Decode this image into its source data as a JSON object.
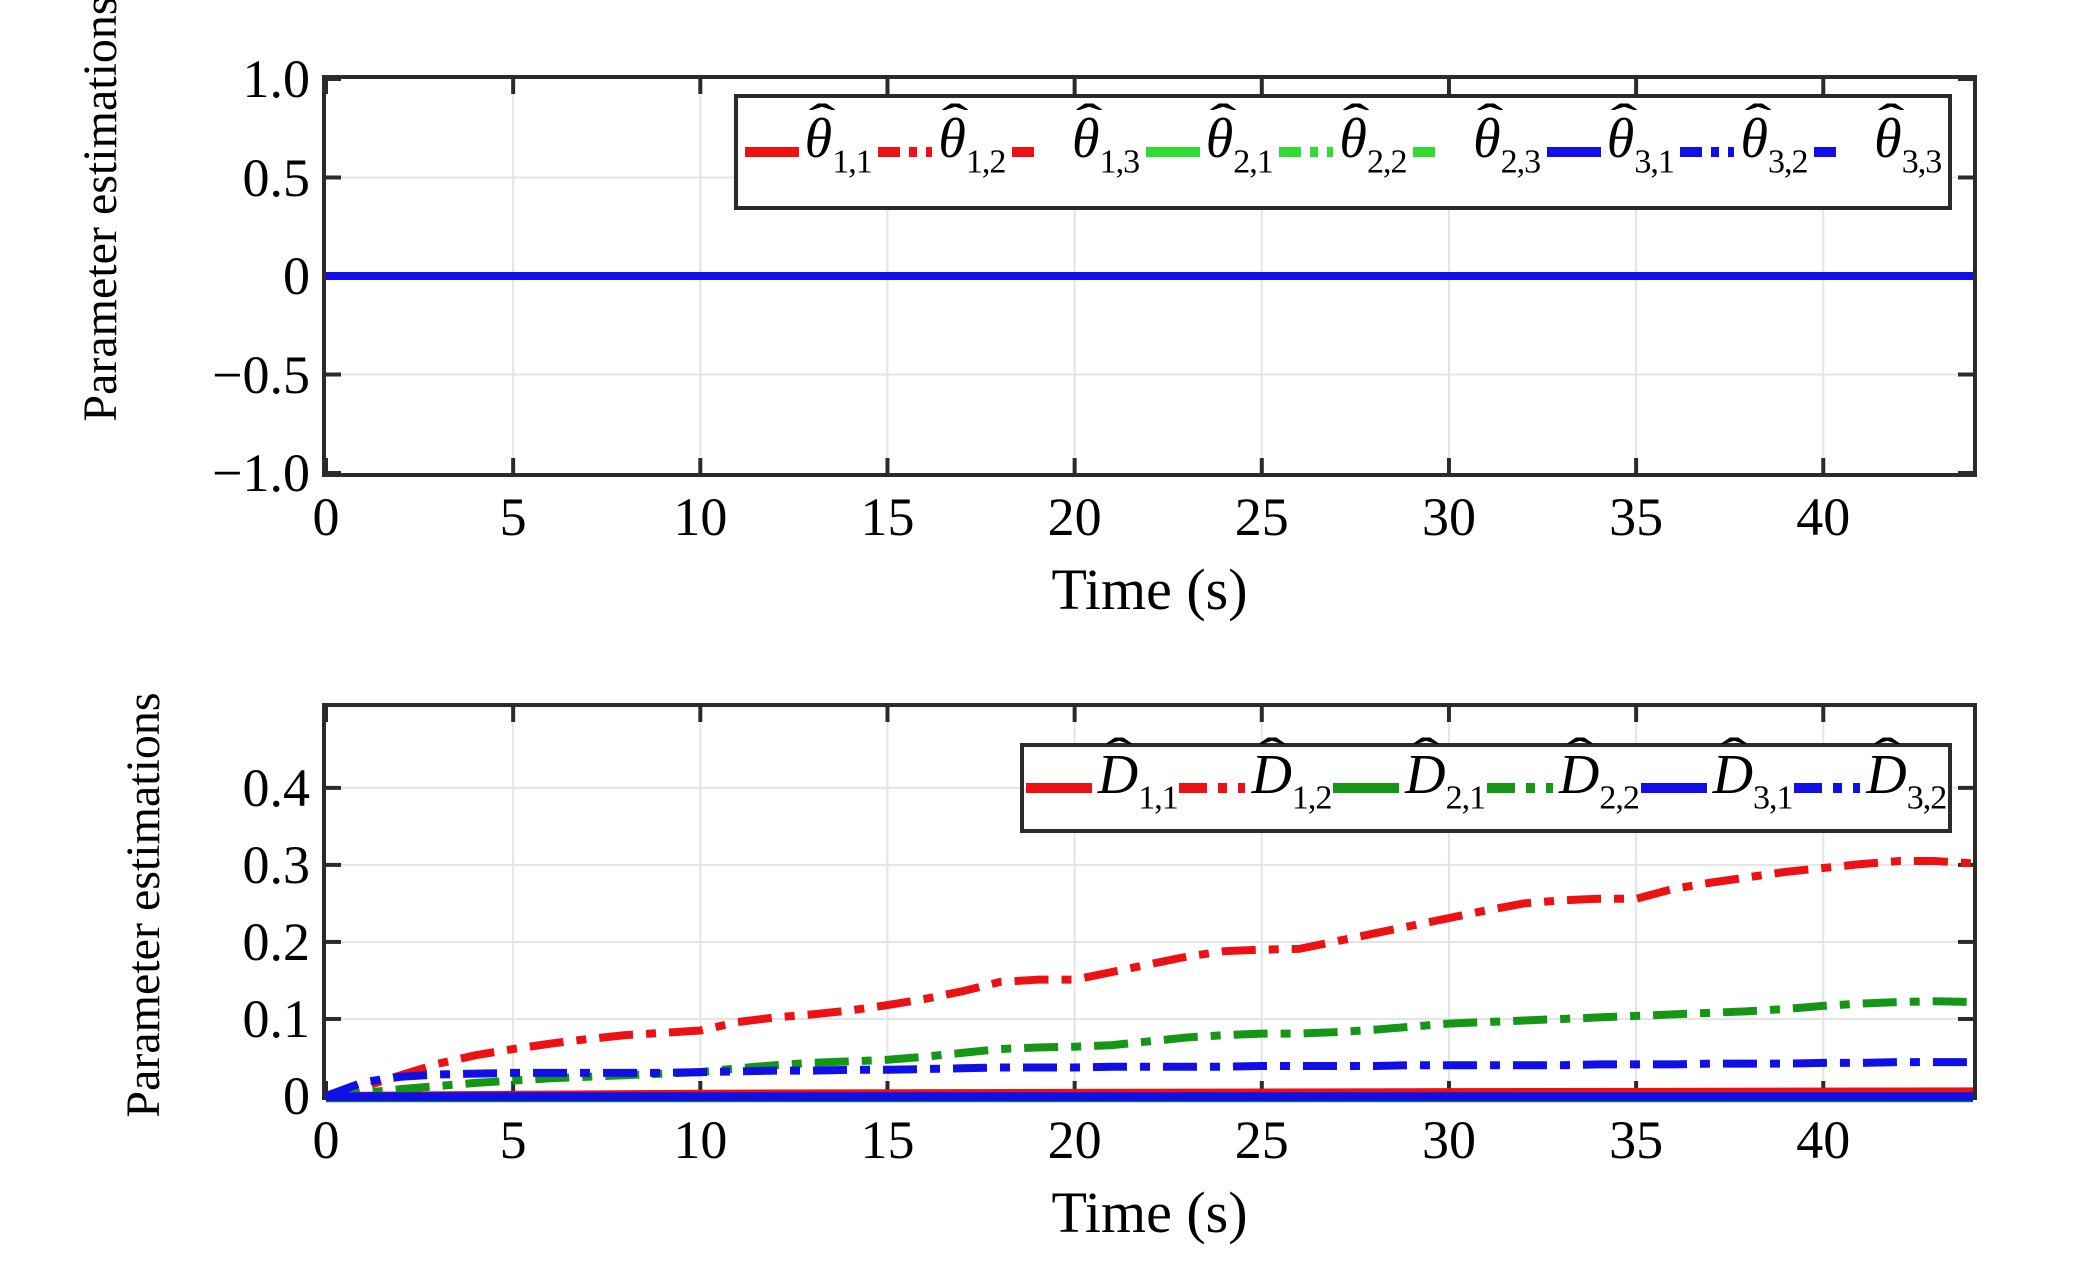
{
  "figure": {
    "background": "#ffffff",
    "axes_border_color": "#2b2b2b",
    "grid_color": "#e4e4e4",
    "tick_color": "#2b2b2b",
    "palette": {
      "red": "#ee1114",
      "bright_green": "#32dc32",
      "dark_green": "#169616",
      "blue": "#1010e6"
    }
  },
  "chart_data": [
    {
      "type": "line",
      "title": "",
      "xlabel": "Time (s)",
      "ylabel": "Parameter estimations",
      "xlim": [
        0,
        44
      ],
      "ylim": [
        -1.0,
        1.0
      ],
      "grid": true,
      "legend_position": "upper right",
      "xticks": {
        "values": [
          0,
          5,
          10,
          15,
          20,
          25,
          30,
          35,
          40
        ],
        "labels": [
          "0",
          "5",
          "10",
          "15",
          "20",
          "25",
          "30",
          "35",
          "40"
        ]
      },
      "yticks": {
        "values": [
          1.0,
          0.5,
          0,
          -0.5,
          -1.0
        ],
        "labels": [
          "1.0",
          "0.5",
          "0",
          "−0.5",
          "−1.0"
        ]
      },
      "series": [
        {
          "name": "theta-hat-1-1",
          "symbol": "θ",
          "sub": "1,1",
          "color": "#ee1114",
          "style": "solid",
          "x": [
            0,
            44
          ],
          "y": [
            0,
            0
          ]
        },
        {
          "name": "theta-hat-1-2",
          "symbol": "θ",
          "sub": "1,2",
          "color": "#ee1114",
          "style": "dashdot",
          "x": [
            0,
            44
          ],
          "y": [
            0,
            0
          ]
        },
        {
          "name": "theta-hat-1-3",
          "symbol": "θ",
          "sub": "1,3",
          "color": "#ee1114",
          "style": "dash",
          "x": [
            0,
            44
          ],
          "y": [
            0,
            0
          ]
        },
        {
          "name": "theta-hat-2-1",
          "symbol": "θ",
          "sub": "2,1",
          "color": "#32dc32",
          "style": "solid",
          "x": [
            0,
            44
          ],
          "y": [
            0,
            0
          ]
        },
        {
          "name": "theta-hat-2-2",
          "symbol": "θ",
          "sub": "2,2",
          "color": "#32dc32",
          "style": "dashdot",
          "x": [
            0,
            44
          ],
          "y": [
            0,
            0
          ]
        },
        {
          "name": "theta-hat-2-3",
          "symbol": "θ",
          "sub": "2,3",
          "color": "#32dc32",
          "style": "dash",
          "x": [
            0,
            44
          ],
          "y": [
            0,
            0
          ]
        },
        {
          "name": "theta-hat-3-1",
          "symbol": "θ",
          "sub": "3,1",
          "color": "#1010e6",
          "style": "solid",
          "x": [
            0,
            44
          ],
          "y": [
            0,
            0
          ]
        },
        {
          "name": "theta-hat-3-2",
          "symbol": "θ",
          "sub": "3,2",
          "color": "#1010e6",
          "style": "dashdot",
          "x": [
            0,
            44
          ],
          "y": [
            0,
            0
          ]
        },
        {
          "name": "theta-hat-3-3",
          "symbol": "θ",
          "sub": "3,3",
          "color": "#1010e6",
          "style": "dash",
          "x": [
            0,
            44
          ],
          "y": [
            0,
            0
          ]
        }
      ]
    },
    {
      "type": "line",
      "title": "",
      "xlabel": "Time (s)",
      "ylabel": "Parameter estimations",
      "xlim": [
        0,
        44
      ],
      "ylim": [
        0,
        0.505
      ],
      "grid": true,
      "legend_position": "upper right",
      "xticks": {
        "values": [
          0,
          5,
          10,
          15,
          20,
          25,
          30,
          35,
          40
        ],
        "labels": [
          "0",
          "5",
          "10",
          "15",
          "20",
          "25",
          "30",
          "35",
          "40"
        ]
      },
      "yticks": {
        "values": [
          0.4,
          0.3,
          0.2,
          0.1,
          0
        ],
        "labels": [
          "0.4",
          "0.3",
          "0.2",
          "0.1",
          "0"
        ]
      },
      "series": [
        {
          "name": "D-hat-1-1",
          "symbol": "D",
          "sub": "1,1",
          "color": "#ee1114",
          "style": "solid",
          "width": 8,
          "x": [
            0,
            10,
            20,
            30,
            44
          ],
          "y": [
            0,
            0.003,
            0.004,
            0.005,
            0.006
          ]
        },
        {
          "name": "D-hat-1-2",
          "symbol": "D",
          "sub": "1,2",
          "color": "#ee1114",
          "style": "dashdot",
          "width": 8,
          "x": [
            0,
            1,
            2,
            3,
            4,
            5,
            6,
            7,
            8,
            9,
            10,
            11,
            12,
            13,
            14,
            15,
            16,
            17,
            18,
            19,
            20,
            21,
            22,
            23,
            24,
            25,
            26,
            27,
            28,
            29,
            30,
            31,
            32,
            33,
            34,
            35,
            36,
            37,
            38,
            39,
            40,
            41,
            42,
            43,
            44
          ],
          "y": [
            0,
            0.012,
            0.027,
            0.042,
            0.053,
            0.061,
            0.068,
            0.074,
            0.079,
            0.082,
            0.085,
            0.096,
            0.102,
            0.106,
            0.111,
            0.118,
            0.126,
            0.136,
            0.148,
            0.151,
            0.151,
            0.161,
            0.171,
            0.181,
            0.188,
            0.19,
            0.191,
            0.201,
            0.211,
            0.221,
            0.231,
            0.241,
            0.25,
            0.254,
            0.256,
            0.256,
            0.269,
            0.277,
            0.284,
            0.291,
            0.296,
            0.301,
            0.305,
            0.305,
            0.302
          ]
        },
        {
          "name": "D-hat-2-1",
          "symbol": "D",
          "sub": "2,1",
          "color": "#169616",
          "style": "solid",
          "width": 8,
          "x": [
            0,
            44
          ],
          "y": [
            -0.003,
            -0.003
          ]
        },
        {
          "name": "D-hat-2-2",
          "symbol": "D",
          "sub": "2,2",
          "color": "#169616",
          "style": "dashdot",
          "width": 8,
          "x": [
            0,
            1,
            2,
            3,
            4,
            5,
            6,
            7,
            8,
            9,
            10,
            11,
            12,
            13,
            14,
            15,
            16,
            17,
            18,
            19,
            20,
            21,
            22,
            23,
            24,
            25,
            26,
            27,
            28,
            29,
            30,
            31,
            32,
            33,
            34,
            35,
            36,
            37,
            38,
            39,
            40,
            41,
            42,
            43,
            44
          ],
          "y": [
            0,
            0.004,
            0.009,
            0.013,
            0.017,
            0.02,
            0.023,
            0.025,
            0.027,
            0.029,
            0.031,
            0.036,
            0.04,
            0.043,
            0.045,
            0.047,
            0.051,
            0.056,
            0.061,
            0.063,
            0.064,
            0.066,
            0.071,
            0.076,
            0.079,
            0.081,
            0.081,
            0.083,
            0.086,
            0.09,
            0.094,
            0.096,
            0.098,
            0.1,
            0.102,
            0.104,
            0.106,
            0.108,
            0.11,
            0.113,
            0.117,
            0.12,
            0.122,
            0.123,
            0.122
          ]
        },
        {
          "name": "D-hat-3-1",
          "symbol": "D",
          "sub": "3,1",
          "color": "#1010e6",
          "style": "solid",
          "width": 9,
          "x": [
            0,
            44
          ],
          "y": [
            -0.001,
            -0.001
          ]
        },
        {
          "name": "D-hat-3-2",
          "symbol": "D",
          "sub": "3,2",
          "color": "#1010e6",
          "style": "dashdot",
          "width": 8,
          "x": [
            0,
            1,
            2,
            3,
            4,
            5,
            6,
            7,
            8,
            9,
            10,
            11,
            12,
            13,
            14,
            15,
            16,
            17,
            18,
            19,
            20,
            21,
            22,
            23,
            24,
            25,
            26,
            27,
            28,
            29,
            30,
            31,
            32,
            33,
            34,
            35,
            36,
            37,
            38,
            39,
            40,
            41,
            42,
            43,
            44
          ],
          "y": [
            0,
            0.018,
            0.025,
            0.028,
            0.029,
            0.03,
            0.03,
            0.03,
            0.03,
            0.03,
            0.031,
            0.032,
            0.033,
            0.033,
            0.034,
            0.034,
            0.035,
            0.036,
            0.037,
            0.037,
            0.037,
            0.038,
            0.038,
            0.038,
            0.038,
            0.039,
            0.039,
            0.039,
            0.039,
            0.04,
            0.04,
            0.04,
            0.04,
            0.04,
            0.041,
            0.041,
            0.041,
            0.042,
            0.042,
            0.042,
            0.043,
            0.043,
            0.044,
            0.044,
            0.044
          ]
        }
      ]
    }
  ]
}
